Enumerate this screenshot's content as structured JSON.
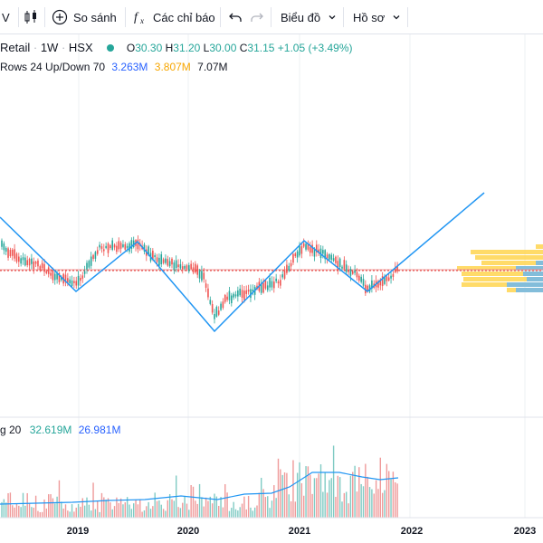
{
  "toolbar": {
    "interval_partial": "V",
    "compare_label": "So sánh",
    "indicators_label": "Các chỉ báo",
    "chart_type_label": "Biểu đồ",
    "profile_label": "Hồ sơ"
  },
  "symbol": {
    "name": "Retail",
    "interval": "1W",
    "exchange": "HSX",
    "open_label": "O",
    "open": "30.30",
    "high_label": "H",
    "high": "31.20",
    "low_label": "L",
    "low": "30.00",
    "close_label": "C",
    "close": "31.15",
    "change": "+1.05 (+3.49%)"
  },
  "vrvp": {
    "label": "Rows 24 Up/Down 70",
    "up": "3.263M",
    "down": "3.807M",
    "total": "7.07M"
  },
  "volume_legend": {
    "label": "g 20",
    "volume": "32.619M",
    "ma": "26.981M"
  },
  "time_axis": {
    "ticks": [
      "2019",
      "2020",
      "2021",
      "2022",
      "2023"
    ]
  },
  "colors": {
    "up": "#26a69a",
    "down": "#ef5350",
    "drawing_line": "#2196f3",
    "price_line": "#e53935",
    "volume_ma": "#2196f3",
    "vp_up": "#2962ff",
    "vp_down": "#f7a600"
  },
  "icons": {
    "candles": "candlestick-icon",
    "compare": "plus-circle-icon",
    "indicators": "fx-icon",
    "undo": "undo-icon",
    "redo": "redo-icon",
    "dropdown": "chevron-down-icon"
  }
}
